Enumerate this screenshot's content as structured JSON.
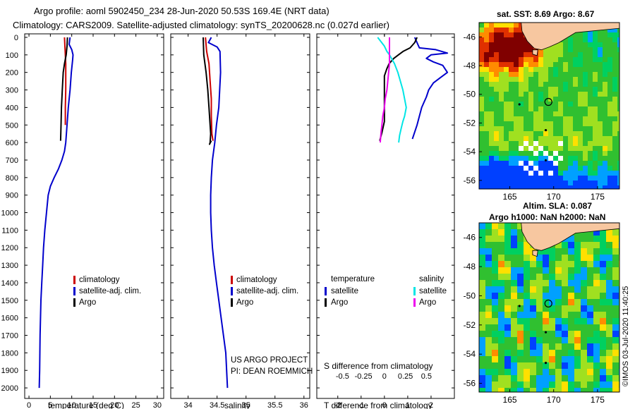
{
  "header": {
    "line1": "Argo profile: aoml 5902450_234 28-Jun-2020 50.53S 169.4E (NRT data)",
    "line2": "Climatology: CARS2009. Satellite-adjusted climatology: synTS_20200628.nc (0.027d earlier)"
  },
  "credits": {
    "project": "US ARGO PROJECT",
    "pi": "PI: DEAN ROEMMICH",
    "imos": "©IMOS 03-Jul-2020 11:40:25"
  },
  "colors": {
    "climatology": "#cc0000",
    "satellite": "#0000cc",
    "argo": "#000000",
    "sal_sat": "#00e5e5",
    "sal_argo": "#ee00ee"
  },
  "chart_data": [
    {
      "type": "line",
      "id": "temperature",
      "xlabel": "temperature (deg C)",
      "ylabel": "",
      "xlim": [
        -1,
        31.5
      ],
      "ylim": [
        2060,
        -20
      ],
      "xticks": [
        0,
        5,
        10,
        15,
        20,
        25,
        30
      ],
      "yticks": [
        0,
        100,
        200,
        300,
        400,
        500,
        600,
        700,
        800,
        900,
        1000,
        1100,
        1200,
        1300,
        1400,
        1500,
        1600,
        1700,
        1800,
        1900,
        2000
      ],
      "legend": [
        "climatology",
        "satellite-adj. clim.",
        "Argo"
      ],
      "series": [
        {
          "name": "climatology",
          "color": "#cc0000",
          "x": [
            8.3,
            8.4,
            8.5,
            8.6,
            8.6,
            8.6,
            8.5,
            8.5
          ],
          "y": [
            0,
            50,
            100,
            150,
            200,
            300,
            400,
            500
          ]
        },
        {
          "name": "satellite-adj. clim.",
          "color": "#0000cc",
          "x": [
            9.6,
            9.4,
            10.0,
            10.3,
            10.2,
            9.9,
            9.6,
            9.2,
            8.9,
            8.6,
            8.3,
            7.7,
            6.9,
            5.9,
            5.0,
            4.5,
            4.1,
            3.7,
            3.4,
            3.2,
            3.0,
            2.8,
            2.6,
            2.5,
            2.4
          ],
          "y": [
            0,
            40,
            70,
            100,
            130,
            200,
            300,
            400,
            500,
            600,
            650,
            700,
            750,
            800,
            850,
            900,
            1000,
            1100,
            1200,
            1300,
            1400,
            1500,
            1700,
            1900,
            2000
          ]
        },
        {
          "name": "Argo",
          "color": "#000000",
          "x": [
            9.0,
            8.9,
            8.7,
            8.3,
            8.0,
            7.8,
            7.6,
            7.5,
            7.4
          ],
          "y": [
            0,
            50,
            100,
            150,
            200,
            300,
            400,
            500,
            590
          ]
        }
      ]
    },
    {
      "type": "line",
      "id": "salinity",
      "xlabel": "salinity",
      "ylabel": "",
      "xlim": [
        33.7,
        36.1
      ],
      "ylim": [
        2060,
        -20
      ],
      "xticks": [
        34,
        34.5,
        35,
        35.5,
        36
      ],
      "legend": [
        "climatology",
        "satellite-adj. clim.",
        "Argo"
      ],
      "series": [
        {
          "name": "climatology",
          "color": "#cc0000",
          "x": [
            34.3,
            34.32,
            34.36,
            34.38,
            34.4,
            34.4,
            34.41,
            34.43
          ],
          "y": [
            0,
            80,
            150,
            250,
            350,
            450,
            550,
            590
          ]
        },
        {
          "name": "satellite-adj. clim.",
          "color": "#0000cc",
          "x": [
            34.4,
            34.35,
            34.5,
            34.55,
            34.56,
            34.53,
            34.49,
            34.46,
            34.42,
            34.4,
            34.39,
            34.39,
            34.4,
            34.42,
            34.45,
            34.49,
            34.53,
            34.57,
            34.61,
            34.65,
            34.68
          ],
          "y": [
            0,
            30,
            55,
            80,
            200,
            400,
            500,
            600,
            700,
            800,
            900,
            1000,
            1100,
            1200,
            1300,
            1400,
            1500,
            1600,
            1700,
            1800,
            2000
          ]
        },
        {
          "name": "Argo",
          "color": "#000000",
          "x": [
            34.26,
            34.27,
            34.31,
            34.34,
            34.36,
            34.38,
            34.39,
            34.38,
            34.37,
            34.4
          ],
          "y": [
            0,
            100,
            200,
            300,
            400,
            500,
            550,
            600,
            610,
            590
          ]
        }
      ]
    },
    {
      "type": "line",
      "id": "difference",
      "xlabel": "T difference from climatology",
      "xlabel2": "S difference from climatology",
      "xlim": [
        -2.9,
        3.0
      ],
      "ylim": [
        2060,
        -20
      ],
      "xticks": [
        -2,
        -1,
        0,
        1,
        2
      ],
      "s_ticks": [
        -0.5,
        -0.25,
        0,
        0.25,
        0.5
      ],
      "legend_titles": [
        "temperature",
        "salinity"
      ],
      "legend": [
        "satellite",
        "Argo",
        "satellite",
        "Argo"
      ],
      "series": [
        {
          "name": "T satellite",
          "color": "#0000cc",
          "x": [
            1.3,
            1.5,
            2.2,
            2.7,
            2.0,
            1.8,
            2.1,
            2.5,
            2.7,
            2.4,
            2.1,
            1.9,
            1.8,
            1.7,
            1.6,
            1.5,
            1.4,
            1.3,
            1.2
          ],
          "y": [
            0,
            60,
            70,
            90,
            100,
            120,
            140,
            160,
            200,
            230,
            260,
            300,
            340,
            370,
            400,
            450,
            500,
            540,
            580
          ]
        },
        {
          "name": "T Argo",
          "color": "#000000",
          "x": [
            1.4,
            1.3,
            1.1,
            0.8,
            0.6,
            0.4,
            0.2,
            0.1,
            0.0,
            0.0,
            0.0,
            0.0,
            -0.1,
            -0.2
          ],
          "y": [
            0,
            30,
            60,
            80,
            100,
            120,
            150,
            180,
            220,
            300,
            400,
            480,
            540,
            590
          ]
        },
        {
          "name": "S satellite",
          "color": "#00e5e5",
          "x": [
            -0.08,
            0.0,
            0.03,
            0.06,
            0.12,
            0.16,
            0.22,
            0.26,
            0.24,
            0.22,
            0.2,
            0.18,
            0.17
          ],
          "y": [
            0,
            50,
            80,
            100,
            150,
            200,
            300,
            400,
            450,
            480,
            520,
            560,
            600
          ]
        },
        {
          "name": "S Argo",
          "color": "#ee00ee",
          "x": [
            0.06,
            0.06,
            0.06,
            0.06,
            0.05,
            0.03,
            0.01,
            0.0,
            -0.02,
            -0.03,
            -0.04,
            -0.05
          ],
          "y": [
            0,
            50,
            100,
            150,
            200,
            300,
            350,
            400,
            450,
            500,
            540,
            600
          ]
        }
      ]
    },
    {
      "type": "heatmap",
      "id": "sst-map",
      "title": "sat. SST: 8.69 Argo: 8.67",
      "xticks": [
        165,
        170,
        175
      ],
      "yticks": [
        -46,
        -48,
        -50,
        -52,
        -54,
        -56
      ],
      "xlim": [
        161.5,
        177.5
      ],
      "ylim": [
        -56.6,
        -45.0
      ],
      "argo_position": {
        "lon": 169.4,
        "lat": -50.53
      }
    },
    {
      "type": "heatmap",
      "id": "sla-map",
      "title": "Altim. SLA: 0.087",
      "subtitle": "Argo h1000: NaN h2000: NaN",
      "xticks": [
        165,
        170,
        175
      ],
      "yticks": [
        -46,
        -48,
        -50,
        -52,
        -54,
        -56
      ],
      "xlim": [
        161.5,
        177.5
      ],
      "ylim": [
        -56.6,
        -45.0
      ],
      "argo_position": {
        "lon": 169.4,
        "lat": -50.53
      }
    }
  ]
}
